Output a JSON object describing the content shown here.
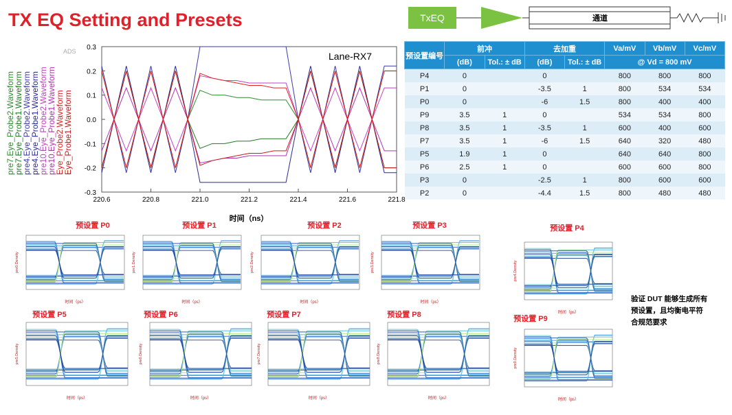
{
  "title": "TX EQ  Setting and Presets",
  "block": {
    "txeq": "TxEQ",
    "channel": "通道"
  },
  "chart_data": {
    "type": "line",
    "annotation": "Lane-RX7",
    "watermark": "ADS",
    "xlabel": "时间（ns）",
    "x": [
      220.6,
      220.65,
      220.7,
      220.75,
      220.8,
      220.85,
      220.9,
      220.95,
      221.0,
      221.05,
      221.1,
      221.15,
      221.2,
      221.25,
      221.3,
      221.35,
      221.4,
      221.45,
      221.5,
      221.55,
      221.6,
      221.65,
      221.7,
      221.75,
      221.8
    ],
    "xlim": [
      220.6,
      221.8
    ],
    "xticks": [
      220.6,
      220.8,
      {
        "value": 221,
        "label": "221.0"
      },
      221.2,
      221.4,
      221.6,
      221.8
    ],
    "ylim": [
      -0.3,
      0.3
    ],
    "yticks": [
      0.3,
      0.2,
      0.1,
      {
        "value": 0,
        "label": "0.0"
      },
      -0.1,
      -0.2,
      -0.3
    ],
    "grid": false,
    "series": [
      {
        "name": "pre7.Eye_Probe2.Waveform",
        "color": "#2e8b2e",
        "values": [
          0.2,
          0,
          -0.2,
          0,
          0.2,
          0,
          -0.2,
          0,
          0.12,
          0.1,
          0.1,
          0.09,
          0.09,
          0.08,
          0.08,
          0.08,
          0,
          -0.2,
          0,
          0.2,
          0,
          -0.2,
          0,
          0.2,
          0.2
        ]
      },
      {
        "name": "pre7.Eye_Probe1.Waveform",
        "color": "#1f7a1f",
        "values": [
          -0.2,
          0,
          0.2,
          0,
          -0.2,
          0,
          0.2,
          0,
          -0.12,
          -0.1,
          -0.1,
          -0.09,
          -0.09,
          -0.08,
          -0.08,
          -0.08,
          0,
          0.2,
          0,
          -0.2,
          0,
          0.2,
          0,
          -0.2,
          -0.2
        ]
      },
      {
        "name": "pre4.Eye_Probe2.Waveform",
        "color": "#3a3aa8",
        "values": [
          0.22,
          0,
          -0.22,
          0,
          0.22,
          0,
          -0.22,
          0,
          0.3,
          0.3,
          0.3,
          0.3,
          0.3,
          0.3,
          0.3,
          0.3,
          0,
          -0.22,
          0,
          0.22,
          0,
          -0.22,
          0,
          0.22,
          0.22
        ]
      },
      {
        "name": "pre4.Eye_Probe1.Waveform",
        "color": "#2a2a90",
        "values": [
          -0.22,
          0,
          0.22,
          0,
          -0.22,
          0,
          0.22,
          0,
          -0.26,
          -0.26,
          -0.26,
          -0.26,
          -0.26,
          -0.26,
          -0.26,
          -0.26,
          0,
          0.22,
          0,
          -0.22,
          0,
          0.22,
          0,
          -0.22,
          -0.22
        ]
      },
      {
        "name": "pre10.Eye_Probe2.Waveform",
        "color": "#c23fc2",
        "values": [
          0.13,
          0,
          -0.13,
          0,
          0.13,
          0,
          -0.13,
          0,
          0.18,
          0.17,
          0.16,
          0.16,
          0.15,
          0.15,
          0.15,
          0.15,
          0,
          -0.13,
          0,
          0.13,
          0,
          -0.13,
          0,
          0.13,
          0.13
        ]
      },
      {
        "name": "pre10.Eye_Probe1.Waveform",
        "color": "#b030b0",
        "values": [
          -0.13,
          0,
          0.13,
          0,
          -0.13,
          0,
          0.13,
          0,
          -0.18,
          -0.17,
          -0.16,
          -0.16,
          -0.15,
          -0.15,
          -0.15,
          -0.15,
          0,
          0.13,
          0,
          -0.13,
          0,
          0.13,
          0,
          -0.13,
          -0.13
        ]
      },
      {
        "name": "Eye_Probe2.Waveform",
        "color": "#e02020",
        "values": [
          0.2,
          0,
          -0.2,
          0,
          0.2,
          0,
          -0.2,
          0,
          0.19,
          0.17,
          0.16,
          0.15,
          0.14,
          0.14,
          0.13,
          0.13,
          0,
          -0.2,
          0,
          0.2,
          0,
          -0.2,
          0,
          0.2,
          0.2
        ]
      },
      {
        "name": "Eye_Probe1.Waveform",
        "color": "#c81818",
        "values": [
          -0.2,
          0,
          0.2,
          0,
          -0.2,
          0,
          0.2,
          0,
          -0.19,
          -0.17,
          -0.16,
          -0.15,
          -0.14,
          -0.14,
          -0.13,
          -0.13,
          0,
          0.2,
          0,
          -0.2,
          0,
          0.2,
          0,
          -0.2,
          -0.2
        ]
      }
    ]
  },
  "table": {
    "header1": [
      "预设置编号",
      "前冲",
      "去加重",
      "Va/mV",
      "Vb/mV",
      "Vc/mV"
    ],
    "header2": [
      "(dB)",
      "Tol.: ± dB",
      "(dB)",
      "Tol.: ± dB",
      "@ Vd = 800 mV"
    ],
    "rows": [
      [
        "P4",
        "0",
        null,
        "0",
        null,
        "800",
        "800",
        "800"
      ],
      [
        "P1",
        "0",
        null,
        "-3.5",
        "1",
        "800",
        "534",
        "534"
      ],
      [
        "P0",
        "0",
        null,
        "-6",
        "1.5",
        "800",
        "400",
        "400"
      ],
      [
        "P9",
        "3.5",
        "1",
        "0",
        null,
        "534",
        "534",
        "800"
      ],
      [
        "P8",
        "3.5",
        "1",
        "-3.5",
        "1",
        "600",
        "400",
        "600"
      ],
      [
        "P7",
        "3.5",
        "1",
        "-6",
        "1.5",
        "640",
        "320",
        "480"
      ],
      [
        "P5",
        "1.9",
        "1",
        "0",
        null,
        "640",
        "640",
        "800"
      ],
      [
        "P6",
        "2.5",
        "1",
        "0",
        null,
        "600",
        "600",
        "800"
      ],
      [
        "P3",
        "0",
        null,
        "-2.5",
        "1",
        "800",
        "600",
        "600"
      ],
      [
        "P2",
        "0",
        null,
        "-4.4",
        "1.5",
        "800",
        "480",
        "480"
      ]
    ]
  },
  "eyes": [
    {
      "title": "预设置 P0",
      "ylabel": "pre0.Density"
    },
    {
      "title": "预设置 P1",
      "ylabel": "pre1.Density"
    },
    {
      "title": "预设置 P2",
      "ylabel": "pre2.Density"
    },
    {
      "title": "预设置 P3",
      "ylabel": "pre3.Density"
    },
    {
      "title": "预设置 P4",
      "ylabel": "pre4.Density"
    },
    {
      "title": "预设置 P5",
      "ylabel": "pre5.Density"
    },
    {
      "title": "预设置 P6",
      "ylabel": "pre6.Density"
    },
    {
      "title": "预设置 P7",
      "ylabel": "pre7.Density"
    },
    {
      "title": "预设置 P8",
      "ylabel": "pre8.Density"
    },
    {
      "title": "预设置 P9",
      "ylabel": "pre9.Density"
    }
  ],
  "eye_xlabel": "时间（ps）",
  "note": [
    "验证 DUT 能够生成所有",
    "预设置，且均衡电平符",
    "合规范要求"
  ]
}
